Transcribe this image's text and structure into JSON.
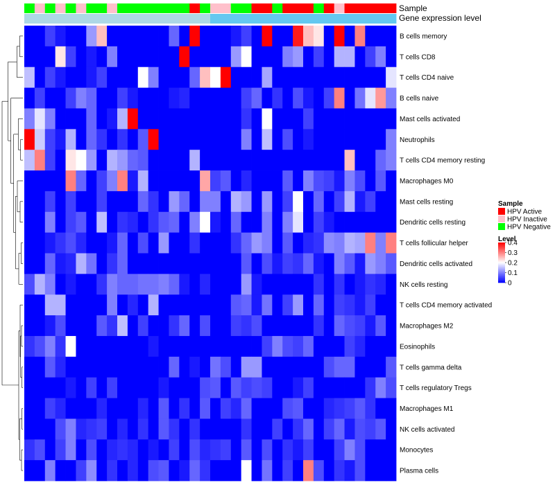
{
  "chart_data": {
    "type": "heatmap",
    "title": "",
    "xlabel": "",
    "ylabel": "",
    "annotation_tracks": [
      {
        "name": "Sample",
        "label": "Sample"
      },
      {
        "name": "Gene expression level",
        "label": "Gene expression level"
      }
    ],
    "sample_track": [
      "HPV Negative",
      "HPV Inactive",
      "HPV Negative",
      "HPV Inactive",
      "HPV Negative",
      "HPV Inactive",
      "HPV Negative",
      "HPV Negative",
      "HPV Inactive",
      "HPV Negative",
      "HPV Negative",
      "HPV Negative",
      "HPV Negative",
      "HPV Negative",
      "HPV Negative",
      "HPV Negative",
      "HPV Active",
      "HPV Negative",
      "HPV Inactive",
      "HPV Inactive",
      "HPV Negative",
      "HPV Negative",
      "HPV Active",
      "HPV Active",
      "HPV Negative",
      "HPV Active",
      "HPV Active",
      "HPV Active",
      "HPV Negative",
      "HPV Active",
      "HPV Inactive",
      "HPV Active",
      "HPV Active",
      "HPV Active",
      "HPV Active",
      "HPV Active"
    ],
    "expression_track": [
      "high",
      "high",
      "high",
      "high",
      "high",
      "high",
      "high",
      "high",
      "high",
      "high",
      "high",
      "high",
      "high",
      "high",
      "high",
      "high",
      "high",
      "high",
      "low",
      "low",
      "low",
      "low",
      "low",
      "low",
      "low",
      "low",
      "low",
      "low",
      "low",
      "low",
      "low",
      "low",
      "low",
      "low",
      "low",
      "low"
    ],
    "expression_colors": {
      "high": "#add8e6",
      "low": "#64c8f0"
    },
    "rows": [
      "B cells memory",
      "T cells CD8",
      "T cells CD4 naive",
      "B cells naive",
      "Mast cells activated",
      "Neutrophils",
      "T cells CD4 memory resting",
      "Macrophages M0",
      "Mast cells resting",
      "Dendritic cells resting",
      "T cells follicular helper",
      "Dendritic cells activated",
      "NK cells resting",
      "T cells CD4 memory activated",
      "Macrophages M2",
      "Eosinophils",
      "T cells gamma delta",
      "T cells regulatory  Tregs",
      "Macrophages M1",
      "NK cells activated",
      "Monocytes",
      "Plasma cells"
    ],
    "values": [
      [
        0,
        0,
        0.05,
        0.02,
        0,
        0,
        0.12,
        0.25,
        0,
        0,
        0,
        0,
        0,
        0,
        0.08,
        0,
        0.4,
        0,
        0,
        0,
        0.02,
        0.05,
        0,
        0.4,
        0,
        0,
        0.38,
        0.25,
        0.22,
        0,
        0.4,
        0,
        0.3,
        0,
        0,
        0
      ],
      [
        0,
        0,
        0,
        0.22,
        0.05,
        0,
        0.02,
        0,
        0.1,
        0,
        0,
        0,
        0,
        0,
        0,
        0.4,
        0,
        0,
        0,
        0,
        0.12,
        0.2,
        0,
        0,
        0,
        0.1,
        0.12,
        0,
        0.05,
        0,
        0.14,
        0.14,
        0,
        0.05,
        0.1,
        0
      ],
      [
        0.15,
        0,
        0.05,
        0.02,
        0,
        0,
        0.02,
        0.05,
        0,
        0,
        0,
        0.2,
        0.1,
        0,
        0,
        0,
        0.08,
        0.25,
        0.2,
        0.4,
        0,
        0,
        0,
        0.13,
        0,
        0,
        0,
        0,
        0,
        0,
        0,
        0,
        0,
        0,
        0,
        0.18
      ],
      [
        0,
        0.05,
        0,
        0,
        0.05,
        0.1,
        0.08,
        0,
        0,
        0.05,
        0.02,
        0,
        0,
        0,
        0.02,
        0.03,
        0,
        0,
        0,
        0,
        0,
        0.05,
        0.08,
        0,
        0.04,
        0,
        0.06,
        0.02,
        0,
        0.05,
        0.3,
        0,
        0.09,
        0.18,
        0.28,
        0.1
      ],
      [
        0.1,
        0.18,
        0.1,
        0,
        0,
        0,
        0.08,
        0,
        0.02,
        0.14,
        0.4,
        0,
        0,
        0,
        0,
        0,
        0,
        0,
        0,
        0,
        0,
        0.04,
        0,
        0.2,
        0,
        0,
        0,
        0.05,
        0,
        0,
        0,
        0,
        0,
        0,
        0,
        0
      ],
      [
        0.4,
        0.16,
        0.05,
        0.02,
        0.14,
        0,
        0.08,
        0.04,
        0,
        0.04,
        0,
        0.07,
        0.4,
        0,
        0,
        0,
        0,
        0,
        0,
        0,
        0,
        0.1,
        0,
        0.15,
        0,
        0.06,
        0,
        0.02,
        0,
        0,
        0,
        0,
        0,
        0,
        0,
        0.1
      ],
      [
        0.15,
        0.3,
        0.05,
        0,
        0.22,
        0.2,
        0.12,
        0,
        0.14,
        0.12,
        0.08,
        0.07,
        0,
        0,
        0,
        0,
        0.14,
        0,
        0,
        0,
        0,
        0,
        0,
        0,
        0,
        0,
        0,
        0,
        0,
        0,
        0,
        0.25,
        0,
        0,
        0.08,
        0.1
      ],
      [
        0,
        0,
        0,
        0,
        0.3,
        0.08,
        0,
        0.05,
        0.1,
        0.3,
        0.02,
        0.14,
        0,
        0,
        0,
        0,
        0,
        0.27,
        0.05,
        0.07,
        0,
        0.03,
        0,
        0,
        0,
        0.07,
        0,
        0.1,
        0.06,
        0.05,
        0.02,
        0.1,
        0.06,
        0,
        0.07,
        0
      ],
      [
        0,
        0,
        0.05,
        0,
        0.05,
        0,
        0,
        0.05,
        0,
        0,
        0,
        0.08,
        0.04,
        0,
        0.12,
        0.08,
        0,
        0.1,
        0.1,
        0,
        0.14,
        0.12,
        0,
        0.12,
        0,
        0.05,
        0.2,
        0,
        0.08,
        0,
        0.05,
        0.14,
        0.02,
        0.05,
        0,
        0
      ],
      [
        0,
        0,
        0.1,
        0,
        0.05,
        0.07,
        0,
        0.15,
        0,
        0.04,
        0.03,
        0,
        0.04,
        0.07,
        0.08,
        0,
        0.1,
        0.2,
        0.02,
        0,
        0.08,
        0,
        0,
        0.1,
        0,
        0.1,
        0.18,
        0,
        0.05,
        0.02,
        0,
        0,
        0,
        0,
        0,
        0
      ],
      [
        0,
        0,
        0.02,
        0.04,
        0.06,
        0.03,
        0,
        0,
        0.02,
        0.08,
        0,
        0.06,
        0,
        0.12,
        0,
        0,
        0.04,
        0,
        0,
        0,
        0.04,
        0.08,
        0.12,
        0.1,
        0,
        0.07,
        0,
        0.03,
        0.04,
        0.11,
        0.1,
        0.14,
        0.13,
        0.3,
        0.1,
        0.3
      ],
      [
        0,
        0,
        0.08,
        0.02,
        0.03,
        0.14,
        0.09,
        0,
        0.04,
        0.08,
        0,
        0,
        0,
        0,
        0,
        0,
        0,
        0,
        0,
        0,
        0,
        0.07,
        0,
        0.06,
        0.02,
        0.05,
        0.04,
        0.08,
        0.02,
        0,
        0.1,
        0.07,
        0.02,
        0.12,
        0.1,
        0.07
      ],
      [
        0.06,
        0.14,
        0.1,
        0,
        0.02,
        0,
        0,
        0.04,
        0.1,
        0.08,
        0.08,
        0.09,
        0.09,
        0.1,
        0.08,
        0.02,
        0,
        0.03,
        0,
        0,
        0,
        0.12,
        0.02,
        0,
        0,
        0,
        0,
        0,
        0.04,
        0,
        0.04,
        0,
        0.02,
        0.04,
        0.03,
        0
      ],
      [
        0,
        0,
        0.14,
        0.14,
        0,
        0,
        0,
        0,
        0.1,
        0,
        0.03,
        0,
        0.14,
        0,
        0,
        0,
        0,
        0,
        0,
        0,
        0.07,
        0.08,
        0.02,
        0.09,
        0,
        0.05,
        0.12,
        0,
        0.08,
        0,
        0.05,
        0.04,
        0.02,
        0.05,
        0,
        0
      ],
      [
        0,
        0,
        0.02,
        0.06,
        0,
        0,
        0,
        0.07,
        0.04,
        0.15,
        0,
        0.05,
        0,
        0,
        0.04,
        0.08,
        0,
        0.06,
        0,
        0,
        0.05,
        0.04,
        0.06,
        0,
        0,
        0,
        0,
        0,
        0.04,
        0,
        0.08,
        0.06,
        0.05,
        0.02,
        0.07,
        0
      ],
      [
        0.04,
        0.06,
        0.1,
        0.04,
        0.2,
        0,
        0,
        0,
        0,
        0,
        0,
        0,
        0.02,
        0,
        0,
        0,
        0,
        0,
        0,
        0,
        0,
        0,
        0,
        0.05,
        0.1,
        0.06,
        0.05,
        0.08,
        0,
        0,
        0,
        0.05,
        0.03,
        0,
        0,
        0
      ],
      [
        0,
        0,
        0.07,
        0.03,
        0,
        0,
        0,
        0,
        0,
        0,
        0,
        0,
        0,
        0,
        0.08,
        0,
        0.02,
        0,
        0.09,
        0.06,
        0,
        0.12,
        0.12,
        0,
        0,
        0,
        0,
        0,
        0,
        0.06,
        0.08,
        0.08,
        0,
        0,
        0,
        0.07
      ],
      [
        0,
        0,
        0,
        0,
        0.02,
        0,
        0.05,
        0,
        0.05,
        0,
        0,
        0,
        0,
        0.02,
        0,
        0,
        0,
        0.06,
        0.07,
        0,
        0.07,
        0.05,
        0.06,
        0.05,
        0,
        0,
        0.02,
        0.05,
        0,
        0,
        0,
        0,
        0,
        0.04,
        0.1,
        0.06
      ],
      [
        0,
        0,
        0.05,
        0.03,
        0,
        0,
        0,
        0.03,
        0,
        0,
        0,
        0.03,
        0,
        0.07,
        0,
        0.04,
        0,
        0.07,
        0,
        0.05,
        0.03,
        0.08,
        0,
        0,
        0,
        0.06,
        0.07,
        0,
        0,
        0.03,
        0.04,
        0.05,
        0.07,
        0.04,
        0,
        0
      ],
      [
        0,
        0,
        0,
        0.06,
        0.1,
        0.03,
        0.04,
        0.05,
        0,
        0.03,
        0,
        0.04,
        0,
        0.07,
        0.04,
        0,
        0.04,
        0,
        0,
        0,
        0,
        0.04,
        0,
        0,
        0.05,
        0,
        0.04,
        0.08,
        0,
        0.05,
        0.08,
        0.02,
        0.06,
        0.05,
        0.07,
        0
      ],
      [
        0.04,
        0.06,
        0,
        0.05,
        0.1,
        0,
        0.06,
        0,
        0.03,
        0.04,
        0.03,
        0,
        0.02,
        0,
        0.05,
        0,
        0.06,
        0.03,
        0.04,
        0.05,
        0,
        0.07,
        0,
        0.06,
        0,
        0.04,
        0.02,
        0.05,
        0,
        0,
        0.05,
        0.1,
        0.06,
        0,
        0,
        0
      ],
      [
        0,
        0,
        0.1,
        0,
        0,
        0.05,
        0.11,
        0,
        0.04,
        0,
        0.03,
        0,
        0.06,
        0.07,
        0,
        0.02,
        0.08,
        0.04,
        0,
        0,
        0,
        0.2,
        0,
        0.09,
        0,
        0.05,
        0,
        0.3,
        0.06,
        0,
        0.04,
        0.02,
        0.06,
        0,
        0,
        0
      ]
    ],
    "color_scale": {
      "min": 0,
      "max": 0.4,
      "low": "#0000ff",
      "mid": "#ffffff",
      "high": "#ff0000"
    },
    "legend": {
      "position": "right",
      "sample_title": "Sample",
      "sample_entries": [
        {
          "label": "HPV Active",
          "color": "#ff0000"
        },
        {
          "label": "HPV Inactive",
          "color": "#ffc0cb"
        },
        {
          "label": "HPV Negative",
          "color": "#00ff00"
        }
      ],
      "level_title": "Level",
      "level_ticks": [
        "0.4",
        "0.3",
        "0.2",
        "0.1",
        "0"
      ],
      "level_tick_values": [
        0.4,
        0.3,
        0.2,
        0.1,
        0
      ]
    },
    "dendrogram": "rows"
  }
}
